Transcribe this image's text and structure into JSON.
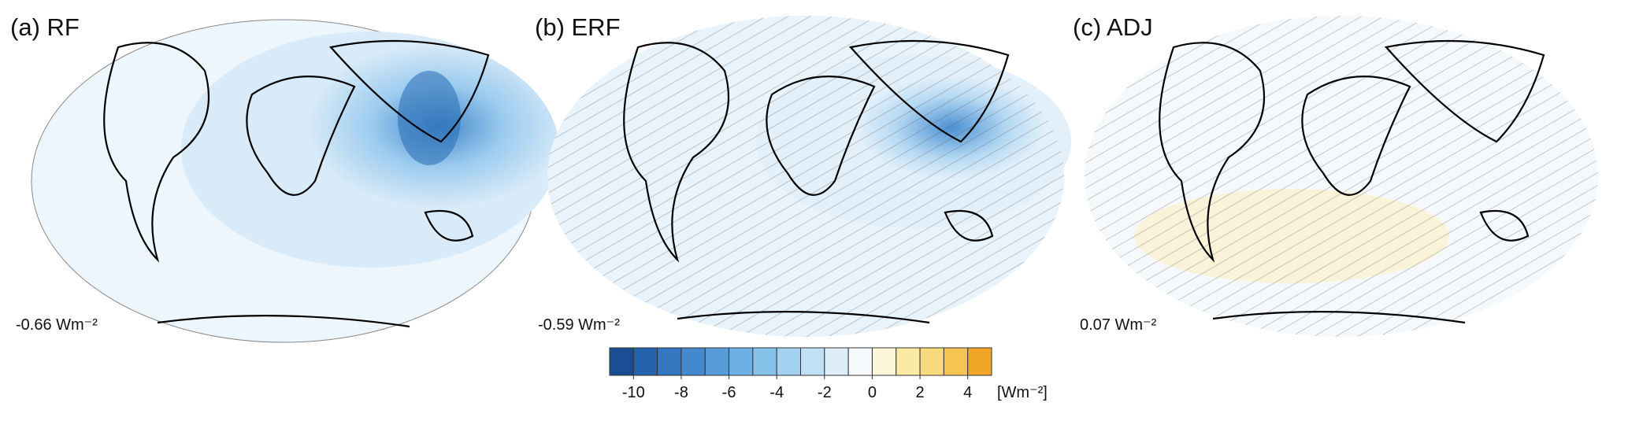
{
  "panels": [
    {
      "title": "(a) RF",
      "global_mean": "-0.66 Wm⁻²"
    },
    {
      "title": "(b) ERF",
      "global_mean": "-0.59 Wm⁻²"
    },
    {
      "title": "(c) ADJ",
      "global_mean": "0.07 Wm⁻²"
    }
  ],
  "colorbar": {
    "levels": [
      -11,
      -10,
      -9,
      -8,
      -7,
      -6,
      -5,
      -4,
      -3,
      -2,
      -1,
      0,
      1,
      2,
      3,
      4,
      5
    ],
    "colors": [
      "#1a4d94",
      "#2462ad",
      "#3377c0",
      "#4489cf",
      "#589dda",
      "#6db0e3",
      "#87c2eb",
      "#a3d2f1",
      "#c0e0f6",
      "#dcedf9",
      "#f7fbfe",
      "#fdf6d8",
      "#fbe9a6",
      "#f8d97c",
      "#f5c452",
      "#f2a629"
    ],
    "ticks": [
      -10,
      -8,
      -6,
      -4,
      -2,
      0,
      2,
      4
    ],
    "unit": "[Wm⁻²]"
  }
}
